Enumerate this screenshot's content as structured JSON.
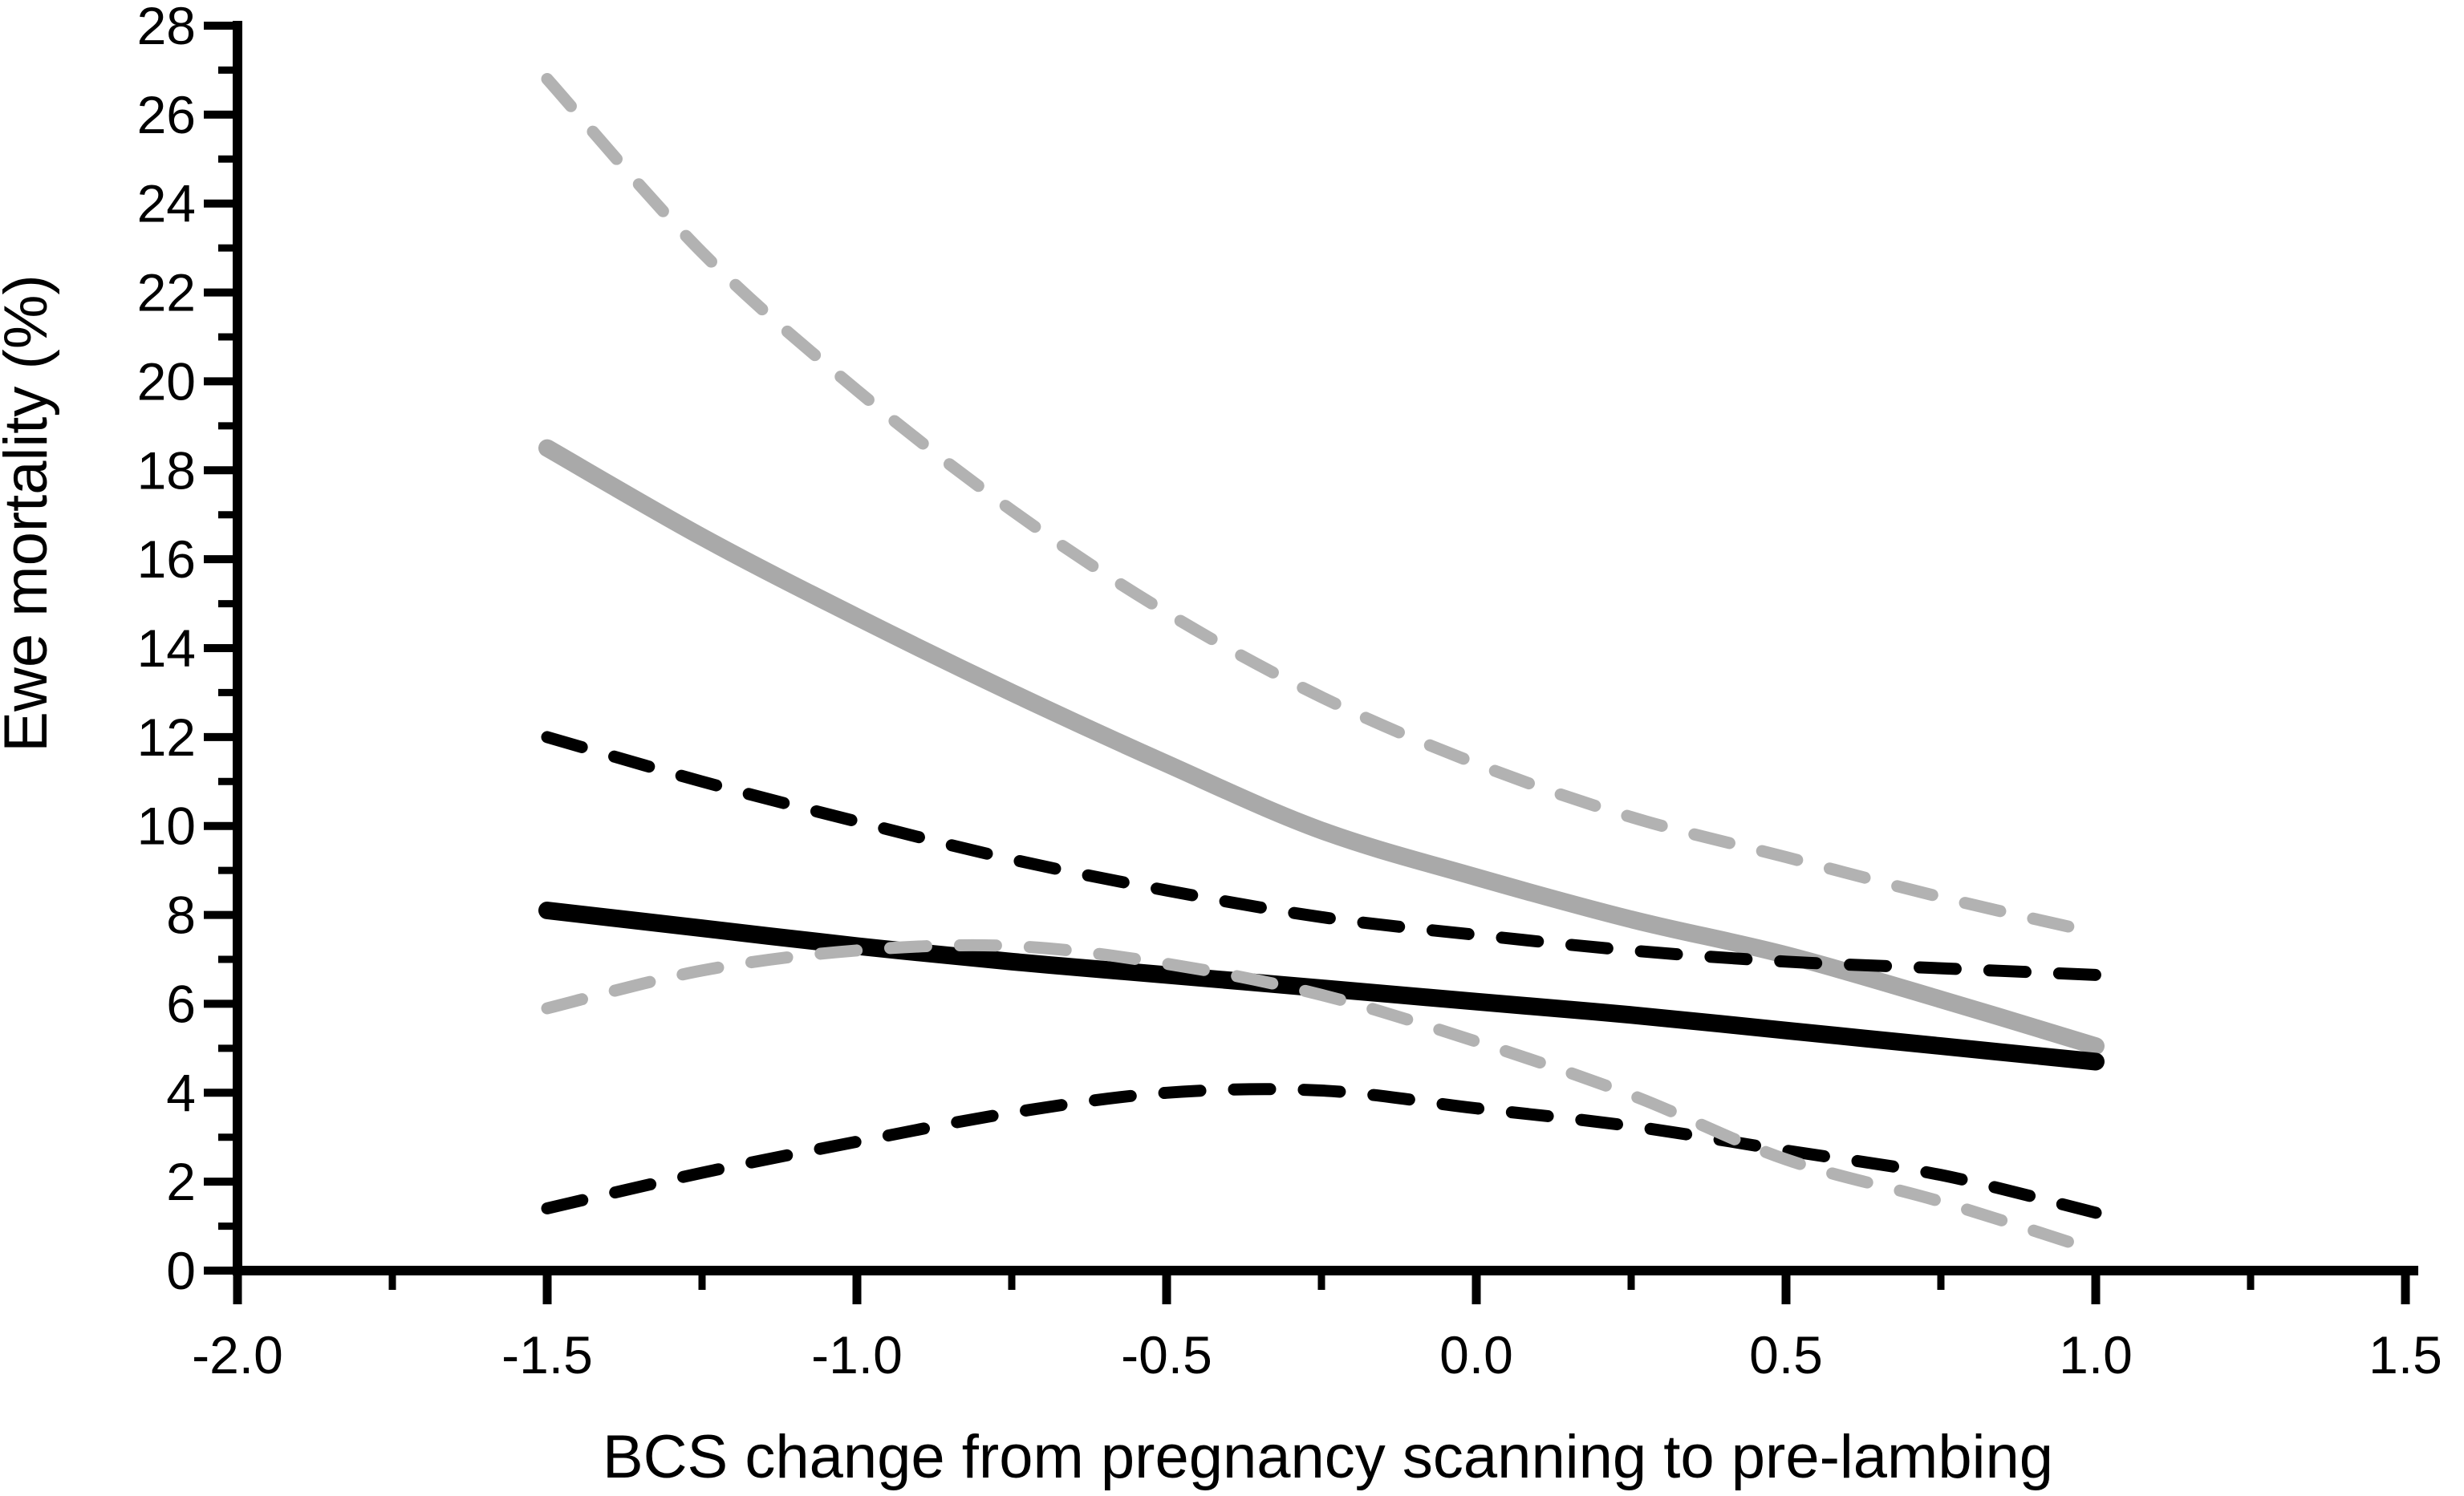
{
  "chart_data": {
    "type": "line",
    "title": "",
    "xlabel": "BCS change from pregnancy scanning to pre-lambing",
    "ylabel": "Ewe mortality (%)",
    "xlim": [
      -2.0,
      1.5
    ],
    "ylim": [
      0,
      28
    ],
    "grid": false,
    "legend": "none",
    "x_major_ticks": [
      -2.0,
      -1.5,
      -1.0,
      -0.5,
      0.0,
      0.5,
      1.0,
      1.5
    ],
    "x_major_tick_labels": [
      "-2.0",
      "-1.5",
      "-1.0",
      "-0.5",
      "0.0",
      "0.5",
      "1.0",
      "1.5"
    ],
    "x_minor_step": 0.25,
    "y_major_ticks": [
      0,
      2,
      4,
      6,
      8,
      10,
      12,
      14,
      16,
      18,
      20,
      22,
      24,
      26,
      28
    ],
    "y_major_tick_labels": [
      "0",
      "2",
      "4",
      "6",
      "8",
      "10",
      "12",
      "14",
      "16",
      "18",
      "20",
      "22",
      "24",
      "26",
      "28"
    ],
    "y_minor_step": 1,
    "x": [
      -1.5,
      -1.25,
      -1.0,
      -0.75,
      -0.5,
      -0.25,
      0.0,
      0.25,
      0.5,
      0.75,
      1.0
    ],
    "series": [
      {
        "name": "gray-solid-predicted-line",
        "style": "solid",
        "color": "#a9a9a9",
        "width": 22,
        "values": [
          18.5,
          16.5,
          14.7,
          13.0,
          11.4,
          9.9,
          8.85,
          7.9,
          7.1,
          6.1,
          5.05
        ]
      },
      {
        "name": "black-dashed-upper-ci-line",
        "style": "dashed",
        "color": "#000000",
        "width": 15,
        "values": [
          12.0,
          11.0,
          10.1,
          9.25,
          8.55,
          7.95,
          7.55,
          7.2,
          6.95,
          6.8,
          6.65
        ]
      },
      {
        "name": "black-dashed-lower-ci-line",
        "style": "dashed",
        "color": "#000000",
        "width": 15,
        "values": [
          1.4,
          2.2,
          2.9,
          3.55,
          4.0,
          4.05,
          3.65,
          3.25,
          2.7,
          2.15,
          1.3
        ]
      },
      {
        "name": "black-solid-predicted-line",
        "style": "solid",
        "color": "#000000",
        "width": 22,
        "values": [
          8.1,
          7.7,
          7.3,
          6.95,
          6.65,
          6.35,
          6.05,
          5.75,
          5.4,
          5.05,
          4.7
        ]
      },
      {
        "name": "gray-dashed-upper-ci-line",
        "style": "dashed",
        "color": "#b2b2b2",
        "width": 15,
        "values": [
          26.8,
          22.9,
          19.8,
          17.1,
          14.8,
          12.9,
          11.4,
          10.2,
          9.3,
          8.4,
          7.6
        ]
      },
      {
        "name": "gray-dashed-lower-ci-line",
        "style": "dashed",
        "color": "#b2b2b2",
        "width": 15,
        "values": [
          5.9,
          6.75,
          7.2,
          7.3,
          6.9,
          6.2,
          5.15,
          3.95,
          2.5,
          1.55,
          0.45
        ]
      }
    ]
  }
}
